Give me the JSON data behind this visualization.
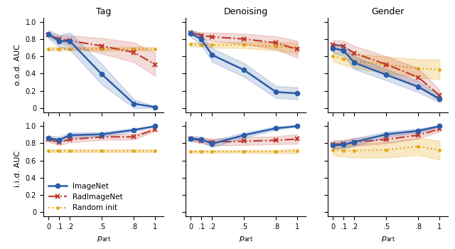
{
  "x": [
    0,
    0.1,
    0.2,
    0.5,
    0.8,
    1.0
  ],
  "x_tick_labels": [
    "0",
    ".1",
    ".2",
    ".5",
    ".8",
    "1"
  ],
  "ood": {
    "Tag": {
      "imagenet_mean": [
        0.855,
        0.775,
        0.775,
        0.39,
        0.05,
        0.01
      ],
      "imagenet_std": [
        0.05,
        0.07,
        0.1,
        0.12,
        0.05,
        0.01
      ],
      "rad_mean": [
        0.845,
        0.8,
        0.78,
        0.72,
        0.645,
        0.505
      ],
      "rad_std": [
        0.03,
        0.04,
        0.06,
        0.09,
        0.115,
        0.135
      ],
      "random_mean": [
        0.685,
        0.685,
        0.685,
        0.685,
        0.685,
        0.685
      ],
      "random_std": [
        0.02,
        0.02,
        0.02,
        0.02,
        0.02,
        0.02
      ]
    },
    "Denoising": {
      "imagenet_mean": [
        0.865,
        0.795,
        0.615,
        0.44,
        0.185,
        0.17
      ],
      "imagenet_std": [
        0.04,
        0.06,
        0.08,
        0.08,
        0.07,
        0.07
      ],
      "rad_mean": [
        0.875,
        0.84,
        0.825,
        0.8,
        0.755,
        0.68
      ],
      "rad_std": [
        0.025,
        0.035,
        0.05,
        0.06,
        0.075,
        0.1
      ],
      "random_mean": [
        0.74,
        0.735,
        0.73,
        0.73,
        0.715,
        0.695
      ],
      "random_std": [
        0.025,
        0.025,
        0.03,
        0.035,
        0.05,
        0.065
      ]
    },
    "Gender": {
      "imagenet_mean": [
        0.695,
        0.665,
        0.525,
        0.385,
        0.245,
        0.105
      ],
      "imagenet_std": [
        0.055,
        0.065,
        0.075,
        0.065,
        0.065,
        0.04
      ],
      "rad_mean": [
        0.735,
        0.715,
        0.635,
        0.505,
        0.355,
        0.145
      ],
      "rad_std": [
        0.05,
        0.065,
        0.085,
        0.095,
        0.105,
        0.065
      ],
      "random_mean": [
        0.6,
        0.57,
        0.545,
        0.5,
        0.46,
        0.445
      ],
      "random_std": [
        0.06,
        0.07,
        0.085,
        0.095,
        0.105,
        0.115
      ]
    }
  },
  "iid": {
    "Tag": {
      "imagenet_mean": [
        0.86,
        0.84,
        0.895,
        0.905,
        0.955,
        1.0
      ],
      "imagenet_std": [
        0.03,
        0.035,
        0.03,
        0.025,
        0.02,
        0.005
      ],
      "rad_mean": [
        0.845,
        0.815,
        0.845,
        0.875,
        0.875,
        0.96
      ],
      "rad_std": [
        0.03,
        0.035,
        0.035,
        0.035,
        0.03,
        0.02
      ],
      "random_mean": [
        0.715,
        0.715,
        0.715,
        0.715,
        0.715,
        0.715
      ],
      "random_std": [
        0.015,
        0.015,
        0.015,
        0.015,
        0.015,
        0.015
      ]
    },
    "Denoising": {
      "imagenet_mean": [
        0.855,
        0.845,
        0.795,
        0.895,
        0.975,
        1.0
      ],
      "imagenet_std": [
        0.03,
        0.03,
        0.04,
        0.03,
        0.02,
        0.005
      ],
      "rad_mean": [
        0.855,
        0.83,
        0.815,
        0.825,
        0.835,
        0.85
      ],
      "rad_std": [
        0.025,
        0.03,
        0.04,
        0.045,
        0.045,
        0.055
      ],
      "random_mean": [
        0.705,
        0.705,
        0.705,
        0.705,
        0.705,
        0.71
      ],
      "random_std": [
        0.015,
        0.015,
        0.015,
        0.015,
        0.02,
        0.025
      ]
    },
    "Gender": {
      "imagenet_mean": [
        0.775,
        0.785,
        0.815,
        0.905,
        0.945,
        1.0
      ],
      "imagenet_std": [
        0.045,
        0.045,
        0.045,
        0.03,
        0.025,
        0.01
      ],
      "rad_mean": [
        0.79,
        0.795,
        0.815,
        0.845,
        0.895,
        0.965
      ],
      "rad_std": [
        0.045,
        0.045,
        0.045,
        0.045,
        0.04,
        0.03
      ],
      "random_mean": [
        0.72,
        0.715,
        0.715,
        0.725,
        0.765,
        0.72
      ],
      "random_std": [
        0.06,
        0.07,
        0.08,
        0.09,
        0.1,
        0.11
      ]
    }
  },
  "colors": {
    "imagenet": "#2b5ca8",
    "rad": "#c0392b",
    "random": "#e6a817"
  },
  "fill_alphas": {
    "imagenet": 0.18,
    "rad": 0.18,
    "random": 0.25
  },
  "tasks": [
    "Tag",
    "Denoising",
    "Gender"
  ],
  "row_labels": [
    "o.o.d. AUC",
    "i.i.d. AUC"
  ],
  "xlabel": "$p_\\mathrm{art}$",
  "legend": [
    "ImageNet",
    "RadImageNet",
    "Random init"
  ]
}
